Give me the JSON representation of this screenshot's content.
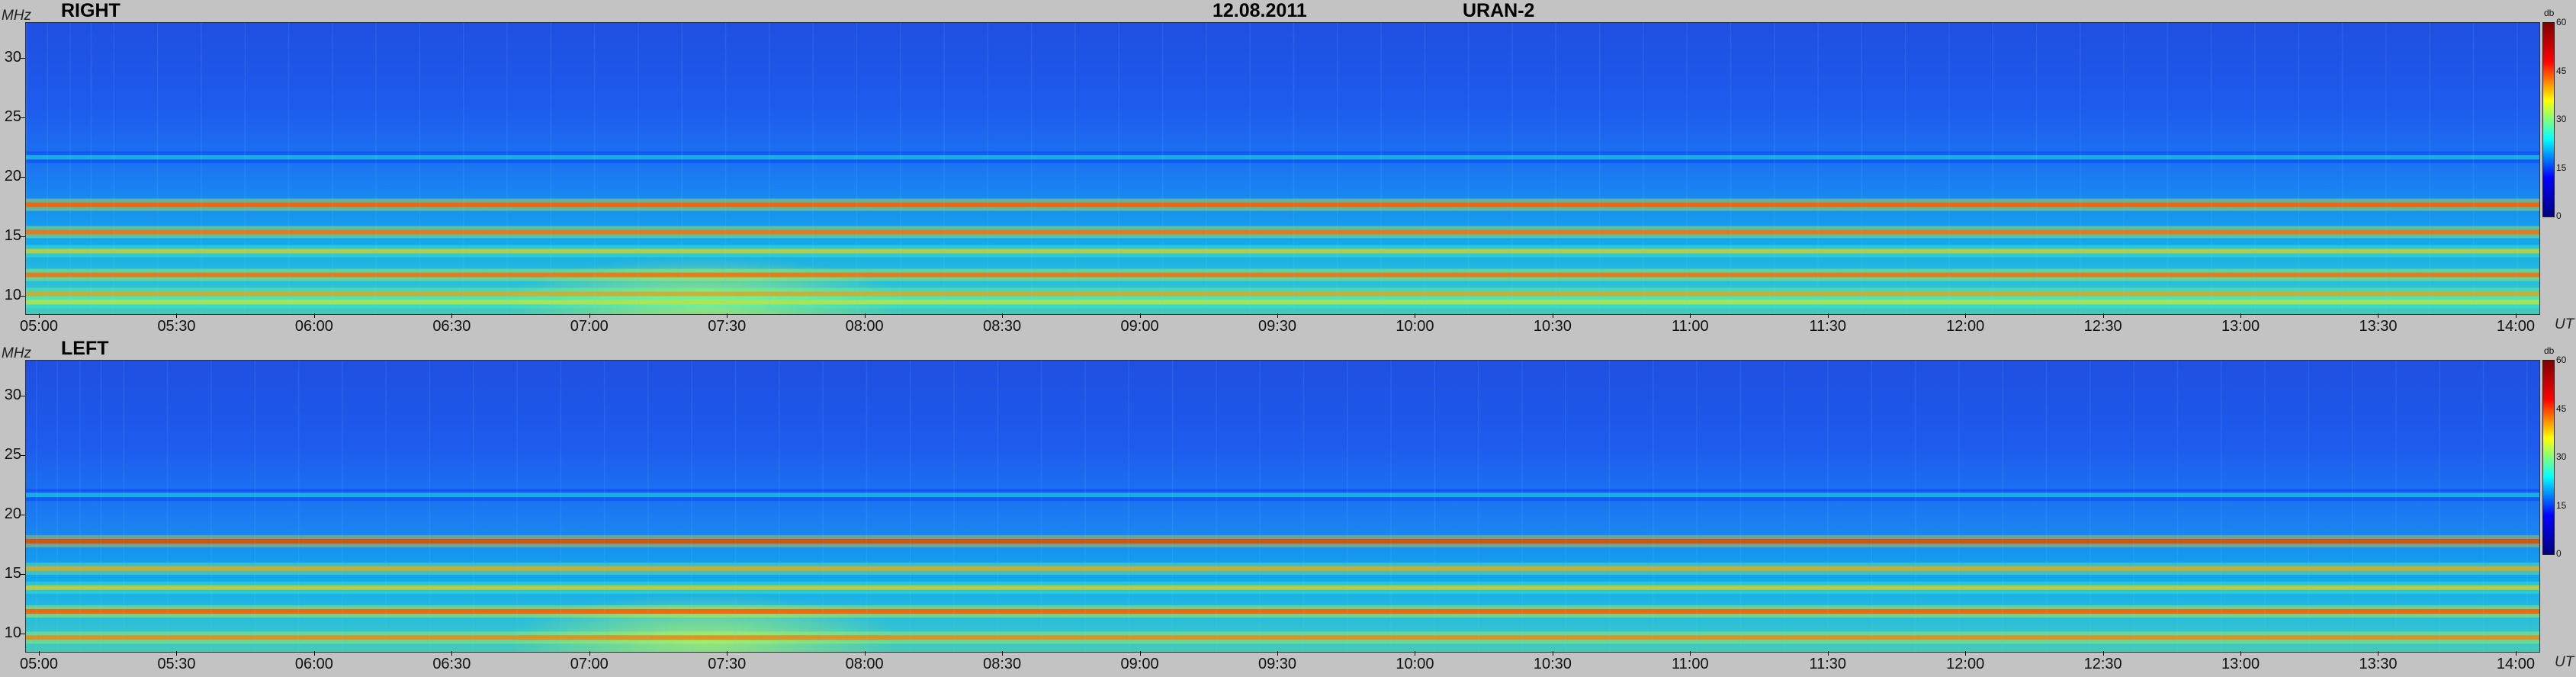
{
  "header": {
    "date": "12.08.2011",
    "instrument": "URAN-2"
  },
  "labels": {
    "freq_unit": "MHz",
    "time_unit": "UT",
    "db_unit": "db"
  },
  "panels": [
    {
      "title": "RIGHT"
    },
    {
      "title": "LEFT"
    }
  ],
  "colorbar": {
    "ticks": [
      "60",
      "45",
      "30",
      "15",
      "0"
    ],
    "colors": [
      "#7f0000",
      "#ff0000",
      "#ffff00",
      "#00ffff",
      "#0000ff",
      "#00007f"
    ]
  },
  "chart_data": [
    {
      "type": "heatmap",
      "title": "RIGHT",
      "xlabel": "UT",
      "ylabel": "MHz",
      "x_ticks": [
        "05:00",
        "05:30",
        "06:00",
        "06:30",
        "07:00",
        "07:30",
        "08:00",
        "08:30",
        "09:00",
        "09:30",
        "10:00",
        "10:30",
        "11:00",
        "11:30",
        "12:00",
        "12:30",
        "13:00",
        "13:30",
        "14:00"
      ],
      "y_ticks": [
        10,
        15,
        20,
        25,
        30
      ],
      "xlim": [
        "04:57",
        "14:05"
      ],
      "ylim": [
        8.5,
        33
      ],
      "colorbar_range_db": [
        0,
        60
      ],
      "bands_mhz": [
        {
          "freq": 9.5,
          "level_db": 40
        },
        {
          "freq": 10.2,
          "level_db": 45
        },
        {
          "freq": 11.8,
          "level_db": 50
        },
        {
          "freq": 13.8,
          "level_db": 42
        },
        {
          "freq": 15.4,
          "level_db": 50
        },
        {
          "freq": 17.7,
          "level_db": 52
        },
        {
          "freq": 21.7,
          "level_db": 25
        }
      ]
    },
    {
      "type": "heatmap",
      "title": "LEFT",
      "xlabel": "UT",
      "ylabel": "MHz",
      "x_ticks": [
        "05:00",
        "05:30",
        "06:00",
        "06:30",
        "07:00",
        "07:30",
        "08:00",
        "08:30",
        "09:00",
        "09:30",
        "10:00",
        "10:30",
        "11:00",
        "11:30",
        "12:00",
        "12:30",
        "13:00",
        "13:30",
        "14:00"
      ],
      "y_ticks": [
        10,
        15,
        20,
        25,
        30
      ],
      "xlim": [
        "04:57",
        "14:05"
      ],
      "ylim": [
        8.5,
        33
      ],
      "colorbar_range_db": [
        0,
        60
      ],
      "bands_mhz": [
        {
          "freq": 9.7,
          "level_db": 48
        },
        {
          "freq": 11.9,
          "level_db": 52
        },
        {
          "freq": 13.9,
          "level_db": 42
        },
        {
          "freq": 15.5,
          "level_db": 45
        },
        {
          "freq": 17.8,
          "level_db": 55
        },
        {
          "freq": 21.7,
          "level_db": 25
        }
      ]
    }
  ]
}
